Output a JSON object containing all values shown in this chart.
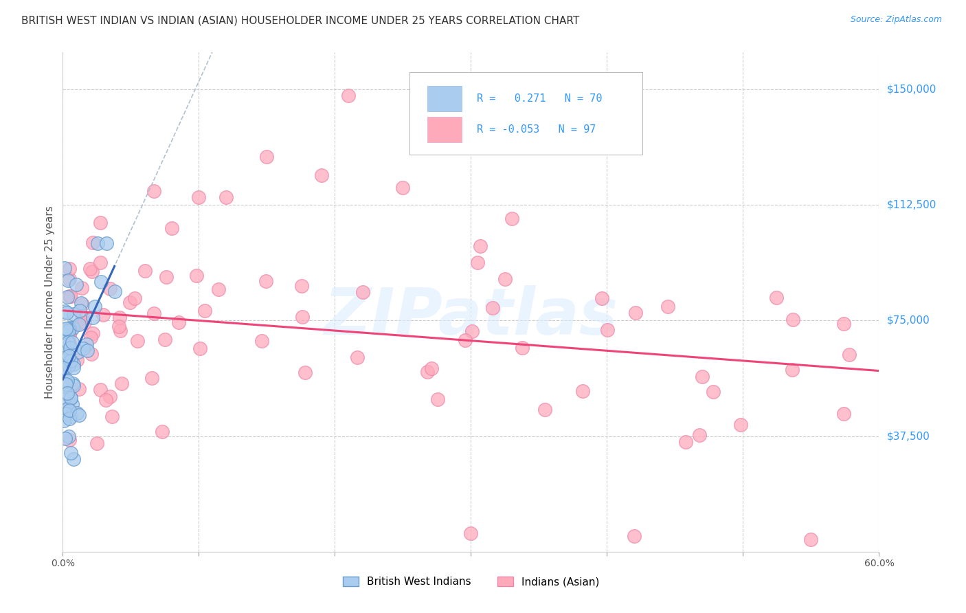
{
  "title": "BRITISH WEST INDIAN VS INDIAN (ASIAN) HOUSEHOLDER INCOME UNDER 25 YEARS CORRELATION CHART",
  "source": "Source: ZipAtlas.com",
  "ylabel": "Householder Income Under 25 years",
  "xlim": [
    0.0,
    0.6
  ],
  "ylim": [
    0,
    162000
  ],
  "xticks": [
    0.0,
    0.1,
    0.2,
    0.3,
    0.4,
    0.5,
    0.6
  ],
  "xticklabels": [
    "0.0%",
    "",
    "",
    "",
    "",
    "",
    "60.0%"
  ],
  "ytick_labels_right": [
    "$150,000",
    "$112,500",
    "$75,000",
    "$37,500"
  ],
  "ytick_vals_right": [
    150000,
    112500,
    75000,
    37500
  ],
  "grid_color": "#cccccc",
  "background_color": "#ffffff",
  "color_bwi_face": "#aaccee",
  "color_bwi_edge": "#6699cc",
  "color_indian_face": "#ffaabb",
  "color_indian_edge": "#ee88aa",
  "trend_color_bwi": "#3366bb",
  "trend_color_indian": "#ee4477",
  "trend_color_dashed": "#aabbcc",
  "legend_line1": "R =   0.271   N = 70",
  "legend_line2": "R = -0.053   N = 97",
  "legend_color1": "#aaccee",
  "legend_color2": "#ffaabb",
  "watermark_text": "ZIPatlas",
  "watermark_color": "#ddeeff",
  "label_color": "#3399ff",
  "title_color": "#333333",
  "ylabel_color": "#555555"
}
